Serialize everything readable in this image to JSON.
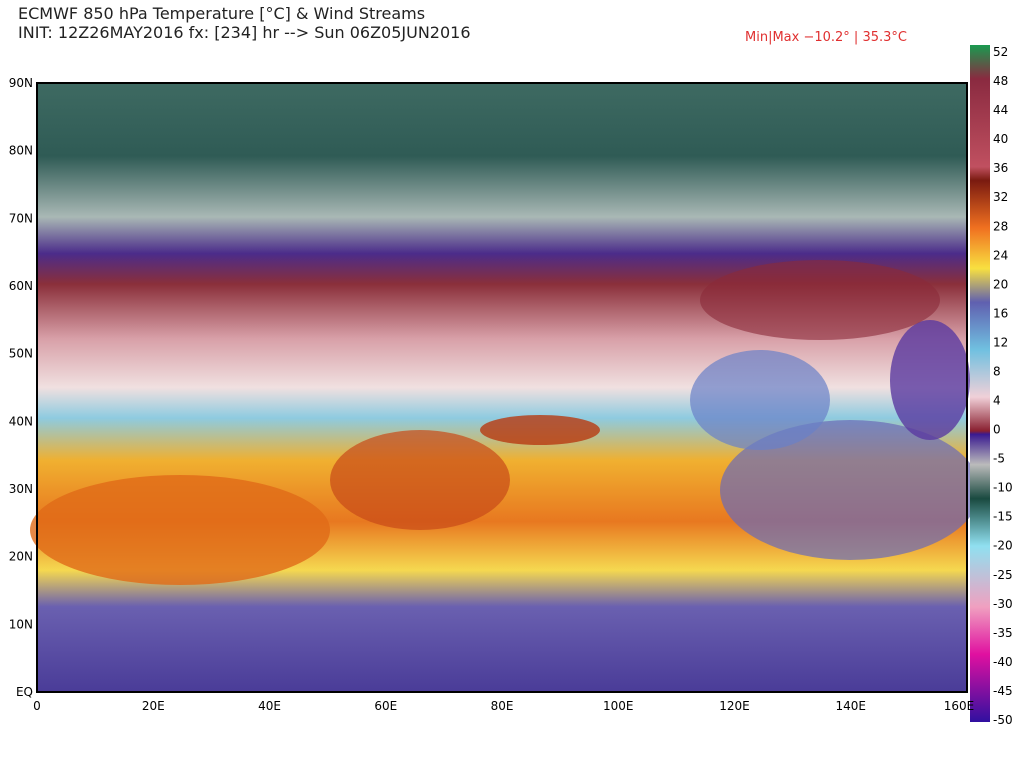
{
  "header": {
    "title": "ECMWF 850 hPa Temperature [°C] & Wind Streams",
    "init": "INIT: 12Z26MAY2016 fx: [234] hr --> Sun 06Z05JUN2016",
    "minmax": "Min|Max −10.2° | 35.3°C"
  },
  "map": {
    "lat_labels": [
      "90N",
      "80N",
      "70N",
      "60N",
      "50N",
      "40N",
      "30N",
      "20N",
      "10N",
      "EQ"
    ],
    "lon_labels": [
      "0",
      "20E",
      "40E",
      "60E",
      "80E",
      "100E",
      "120E",
      "140E",
      "160E"
    ]
  },
  "colorbar": {
    "labels": [
      "52",
      "48",
      "44",
      "40",
      "36",
      "32",
      "28",
      "24",
      "20",
      "16",
      "12",
      "8",
      "4",
      "0",
      "-5",
      "-10",
      "-15",
      "-20",
      "-25",
      "-30",
      "-35",
      "-40",
      "-45",
      "-50"
    ]
  }
}
